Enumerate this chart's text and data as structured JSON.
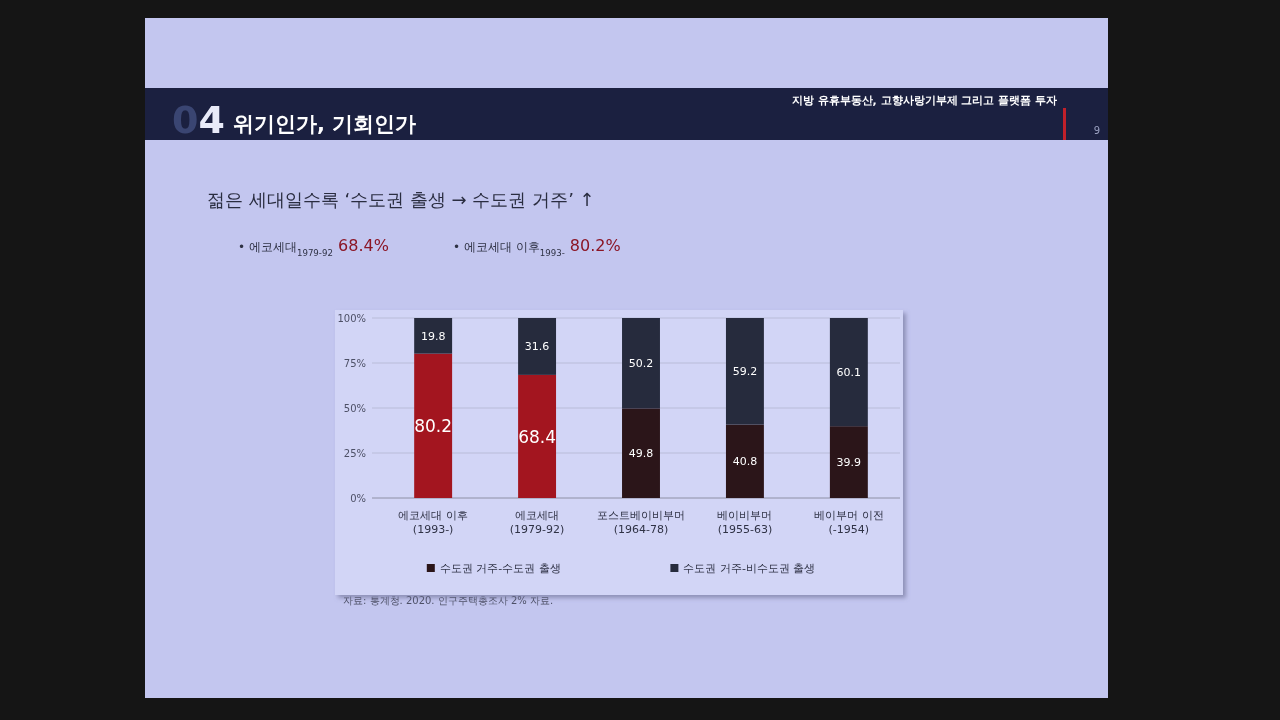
{
  "chart_data": {
    "type": "bar",
    "stacked": true,
    "title": "위기인가, 기회인가",
    "subtitle": "젊은 세대일수록 ‘수도권 출생 → 수도권 거주’ ↑",
    "categories": [
      "에코세대 이후\n(1993-)",
      "에코세대\n(1979-92)",
      "포스트베이비부머\n(1964-78)",
      "베이비부머\n(1955-63)",
      "베이부머 이전\n(-1954)"
    ],
    "series": [
      {
        "name": "수도권 거주-수도권 출생",
        "color": "#2b1519",
        "colors": [
          "#a3151f",
          "#a3151f",
          "#2b1519",
          "#2b1519",
          "#2b1519"
        ],
        "values": [
          80.2,
          68.4,
          49.8,
          40.8,
          39.9
        ]
      },
      {
        "name": "수도권 거주-비수도권 출생",
        "color": "#262b3d",
        "values": [
          19.8,
          31.6,
          50.2,
          59.2,
          60.1
        ]
      }
    ],
    "ylim": [
      0,
      100
    ],
    "yticks": [
      {
        "value": 0,
        "label": "0%"
      },
      {
        "value": 25,
        "label": "25%"
      },
      {
        "value": 50,
        "label": "50%"
      },
      {
        "value": 75,
        "label": "75%"
      },
      {
        "value": 100,
        "label": "100%"
      }
    ],
    "grid": "y",
    "legend": "bottom",
    "data_labels": true,
    "annotations": [
      "04",
      "지방 유휴부동산, 고향사랑기부제 그리고 플랫폼 투자",
      "9",
      "• 에코세대$_{1979-92}$ 68.4%",
      "• 에코세대 이후$_{1993-}$ 80.2%",
      "자료: 통계청. 2020. 인구주택총조사 2% 자료."
    ]
  }
}
